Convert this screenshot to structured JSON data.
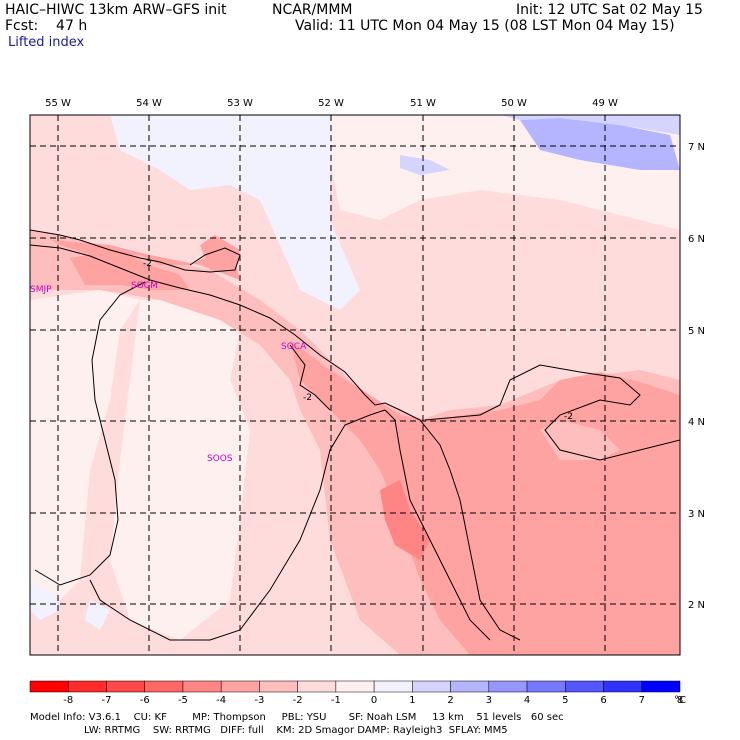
{
  "header": {
    "model": "HAIC–HIWC 13km ARW–GFS init",
    "org": "NCAR/MMM",
    "fcst": "Fcst:    47 h",
    "init": "Init: 12 UTC Sat 02 May 15",
    "valid": "Valid: 11 UTC Mon 04 May 15 (08 LST Mon 04 May 15)",
    "field": "Lifted index"
  },
  "map": {
    "lon_labels": [
      "55 W",
      "54 W",
      "53 W",
      "52 W",
      "51 W",
      "50 W",
      "49 W"
    ],
    "lat_labels": [
      "7 N",
      "6 N",
      "5 N",
      "4 N",
      "3 N",
      "2 N"
    ],
    "stations": [
      "SMJP",
      "SOCM",
      "SOCA",
      "SOOS"
    ],
    "contour_labels": [
      "-2",
      "-2",
      "-2"
    ]
  },
  "colorbar": {
    "labels": [
      "-8",
      "-7",
      "-6",
      "-5",
      "-4",
      "-3",
      "-2",
      "-1",
      "0",
      "1",
      "2",
      "3",
      "4",
      "5",
      "6",
      "7",
      "8"
    ],
    "unit": "°C",
    "colors": [
      "#ff0000",
      "#ff2a2a",
      "#ff4848",
      "#ff6666",
      "#ff8484",
      "#ffa2a2",
      "#ffbebe",
      "#ffdcdc",
      "#fff0f0",
      "#f2f2ff",
      "#d4d4ff",
      "#b4b4ff",
      "#9696ff",
      "#7878ff",
      "#5656ff",
      "#3232ff",
      "#0000ff"
    ]
  },
  "footer": {
    "line1": "Model Info: V3.6.1    CU: KF        MP: Thompson     PBL: YSU       SF: Noah LSM     13 km    51 levels   60 sec",
    "line2": "                 LW: RRTMG    SW: RRTMG   DIFF: full    KM: 2D Smagor DAMP: Rayleigh3  SFLAY: MM5"
  }
}
